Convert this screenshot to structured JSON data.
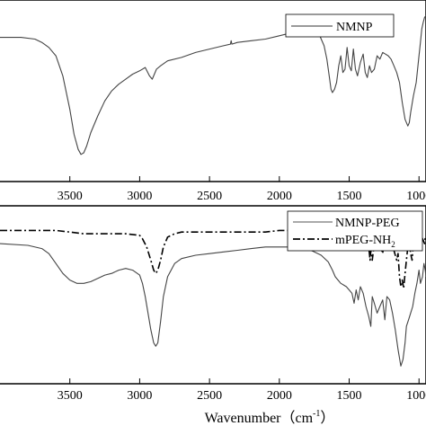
{
  "chart_data": [
    {
      "type": "line",
      "panel": "top",
      "xlabel": "",
      "ylabel": "",
      "x_reversed": true,
      "xlim": [
        4000,
        950
      ],
      "xticks": [
        3500,
        3000,
        2500,
        2000,
        1500,
        1000
      ],
      "xtick_labels": [
        "3500",
        "3000",
        "2500",
        "2000",
        "1500",
        "1000"
      ],
      "ylim": [
        0,
        100
      ],
      "legend_position": "top-right",
      "series": [
        {
          "name": "NMNP",
          "style": "solid",
          "x": [
            4000,
            3850,
            3750,
            3700,
            3650,
            3600,
            3550,
            3500,
            3470,
            3440,
            3420,
            3400,
            3380,
            3350,
            3300,
            3250,
            3200,
            3150,
            3100,
            3050,
            3000,
            2960,
            2930,
            2910,
            2880,
            2850,
            2800,
            2700,
            2600,
            2500,
            2400,
            2350,
            2345,
            2340,
            2300,
            2200,
            2100,
            2000,
            1900,
            1850,
            1820,
            1800,
            1780,
            1760,
            1740,
            1720,
            1700,
            1680,
            1660,
            1640,
            1630,
            1620,
            1605,
            1590,
            1575,
            1560,
            1545,
            1530,
            1515,
            1500,
            1485,
            1470,
            1455,
            1440,
            1420,
            1400,
            1385,
            1370,
            1355,
            1340,
            1320,
            1300,
            1280,
            1260,
            1240,
            1220,
            1200,
            1180,
            1160,
            1140,
            1120,
            1100,
            1080,
            1070,
            1060,
            1040,
            1020,
            1000,
            990,
            980,
            970,
            960,
            950
          ],
          "y": [
            83,
            83,
            82,
            80,
            77,
            72,
            60,
            40,
            25,
            16,
            13,
            14,
            18,
            26,
            36,
            45,
            51,
            55,
            58,
            61,
            63,
            65,
            60,
            58,
            64,
            66,
            69,
            71,
            74,
            76,
            78,
            79,
            81,
            79,
            80,
            81,
            82,
            84,
            86,
            88,
            89,
            90,
            90,
            89,
            88,
            86,
            82,
            78,
            70,
            58,
            52,
            50,
            52,
            56,
            66,
            72,
            62,
            64,
            77,
            66,
            63,
            76,
            64,
            60,
            68,
            73,
            62,
            59,
            66,
            62,
            64,
            72,
            70,
            74,
            73,
            72,
            70,
            66,
            62,
            56,
            44,
            34,
            30,
            32,
            38,
            48,
            56,
            72,
            80,
            88,
            92,
            95,
            96
          ]
        }
      ]
    },
    {
      "type": "line",
      "panel": "bottom",
      "xlabel": "Wavenumber（cm",
      "xlabel_sup": "-1",
      "xlabel_close": "）",
      "ylabel": "",
      "x_reversed": true,
      "xlim": [
        4000,
        950
      ],
      "xticks": [
        3500,
        3000,
        2500,
        2000,
        1500,
        1000
      ],
      "xtick_labels": [
        "3500",
        "3000",
        "2500",
        "2000",
        "1500",
        "1000"
      ],
      "ylim": [
        0,
        100
      ],
      "legend_position": "top-right",
      "series": [
        {
          "name": "NMNP-PEG",
          "style": "solid",
          "x": [
            4000,
            3800,
            3700,
            3650,
            3600,
            3550,
            3500,
            3450,
            3400,
            3350,
            3300,
            3250,
            3200,
            3150,
            3100,
            3050,
            3000,
            2980,
            2960,
            2940,
            2920,
            2900,
            2885,
            2870,
            2850,
            2830,
            2800,
            2750,
            2700,
            2600,
            2500,
            2400,
            2300,
            2200,
            2100,
            2000,
            1900,
            1800,
            1750,
            1700,
            1650,
            1620,
            1600,
            1580,
            1560,
            1540,
            1520,
            1500,
            1480,
            1465,
            1450,
            1435,
            1420,
            1400,
            1380,
            1360,
            1345,
            1335,
            1320,
            1300,
            1280,
            1260,
            1245,
            1230,
            1210,
            1190,
            1170,
            1150,
            1130,
            1115,
            1100,
            1090,
            1075,
            1060,
            1045,
            1030,
            1015,
            1000,
            990,
            975,
            965,
            955,
            950
          ],
          "y": [
            82,
            81,
            79,
            76,
            70,
            64,
            60,
            58,
            58,
            59,
            61,
            63,
            64,
            66,
            67,
            66,
            63,
            58,
            50,
            40,
            30,
            22,
            20,
            22,
            35,
            50,
            62,
            70,
            73,
            75,
            76,
            77,
            78,
            79,
            80,
            80,
            80,
            79,
            77,
            75,
            71,
            66,
            62,
            60,
            58,
            57,
            56,
            54,
            52,
            46,
            54,
            48,
            56,
            52,
            44,
            38,
            32,
            50,
            46,
            40,
            44,
            48,
            36,
            50,
            48,
            40,
            30,
            18,
            8,
            12,
            22,
            32,
            36,
            40,
            44,
            52,
            58,
            66,
            58,
            62,
            70,
            66,
            62
          ]
        },
        {
          "name": "mPEG-NH",
          "name_sub": "2",
          "style": "dashdot",
          "x": [
            4000,
            3800,
            3600,
            3500,
            3400,
            3300,
            3200,
            3100,
            3000,
            2980,
            2950,
            2920,
            2900,
            2885,
            2870,
            2850,
            2830,
            2800,
            2750,
            2700,
            2600,
            2500,
            2400,
            2300,
            2200,
            2100,
            2000,
            1900,
            1800,
            1700,
            1600,
            1500,
            1480,
            1470,
            1460,
            1450,
            1440,
            1420,
            1400,
            1380,
            1360,
            1350,
            1345,
            1335,
            1320,
            1300,
            1280,
            1260,
            1250,
            1240,
            1230,
            1220,
            1200,
            1180,
            1160,
            1150,
            1140,
            1130,
            1120,
            1110,
            1100,
            1090,
            1080,
            1070,
            1060,
            1050,
            1040,
            1030,
            1020,
            1000,
            990,
            980,
            970,
            960,
            955,
            950
          ],
          "y": [
            90,
            90,
            90,
            89,
            88,
            88,
            88,
            88,
            87,
            85,
            80,
            72,
            66,
            64,
            66,
            72,
            80,
            86,
            88,
            89,
            89,
            89,
            89,
            89,
            89,
            89,
            90,
            90,
            90,
            90,
            90,
            89,
            86,
            80,
            86,
            84,
            88,
            87,
            86,
            84,
            80,
            72,
            78,
            72,
            82,
            86,
            82,
            76,
            84,
            80,
            86,
            84,
            82,
            78,
            72,
            76,
            62,
            56,
            60,
            55,
            64,
            72,
            80,
            84,
            76,
            72,
            82,
            86,
            88,
            84,
            80,
            86,
            84,
            82,
            86,
            85
          ]
        }
      ]
    }
  ]
}
